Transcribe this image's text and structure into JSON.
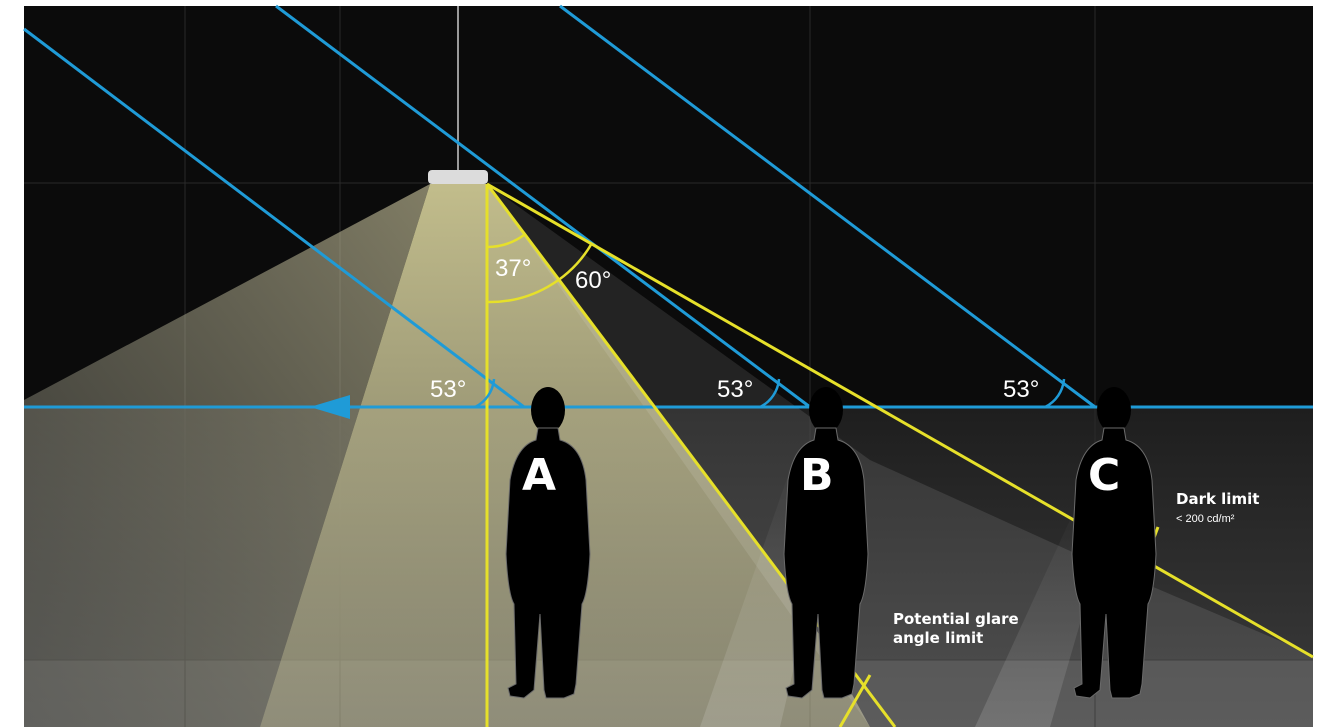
{
  "angles": {
    "vertical_to_glare": "37°",
    "vertical_to_dark": "60°",
    "cutoff_a": "53°",
    "cutoff_b": "53°",
    "cutoff_c": "53°"
  },
  "people": [
    "A",
    "B",
    "C"
  ],
  "notes": {
    "dark_limit_title": "Dark limit",
    "dark_limit_value": "< 200 cd/m²",
    "glare_line1": "Potential glare",
    "glare_line2": "angle limit"
  },
  "colors": {
    "background": "#0b0b0b",
    "cutoff_line": "#1f9bd7",
    "glare_line": "#e6e02a",
    "light_cone": "#d8d39a",
    "text": "#ffffff"
  }
}
